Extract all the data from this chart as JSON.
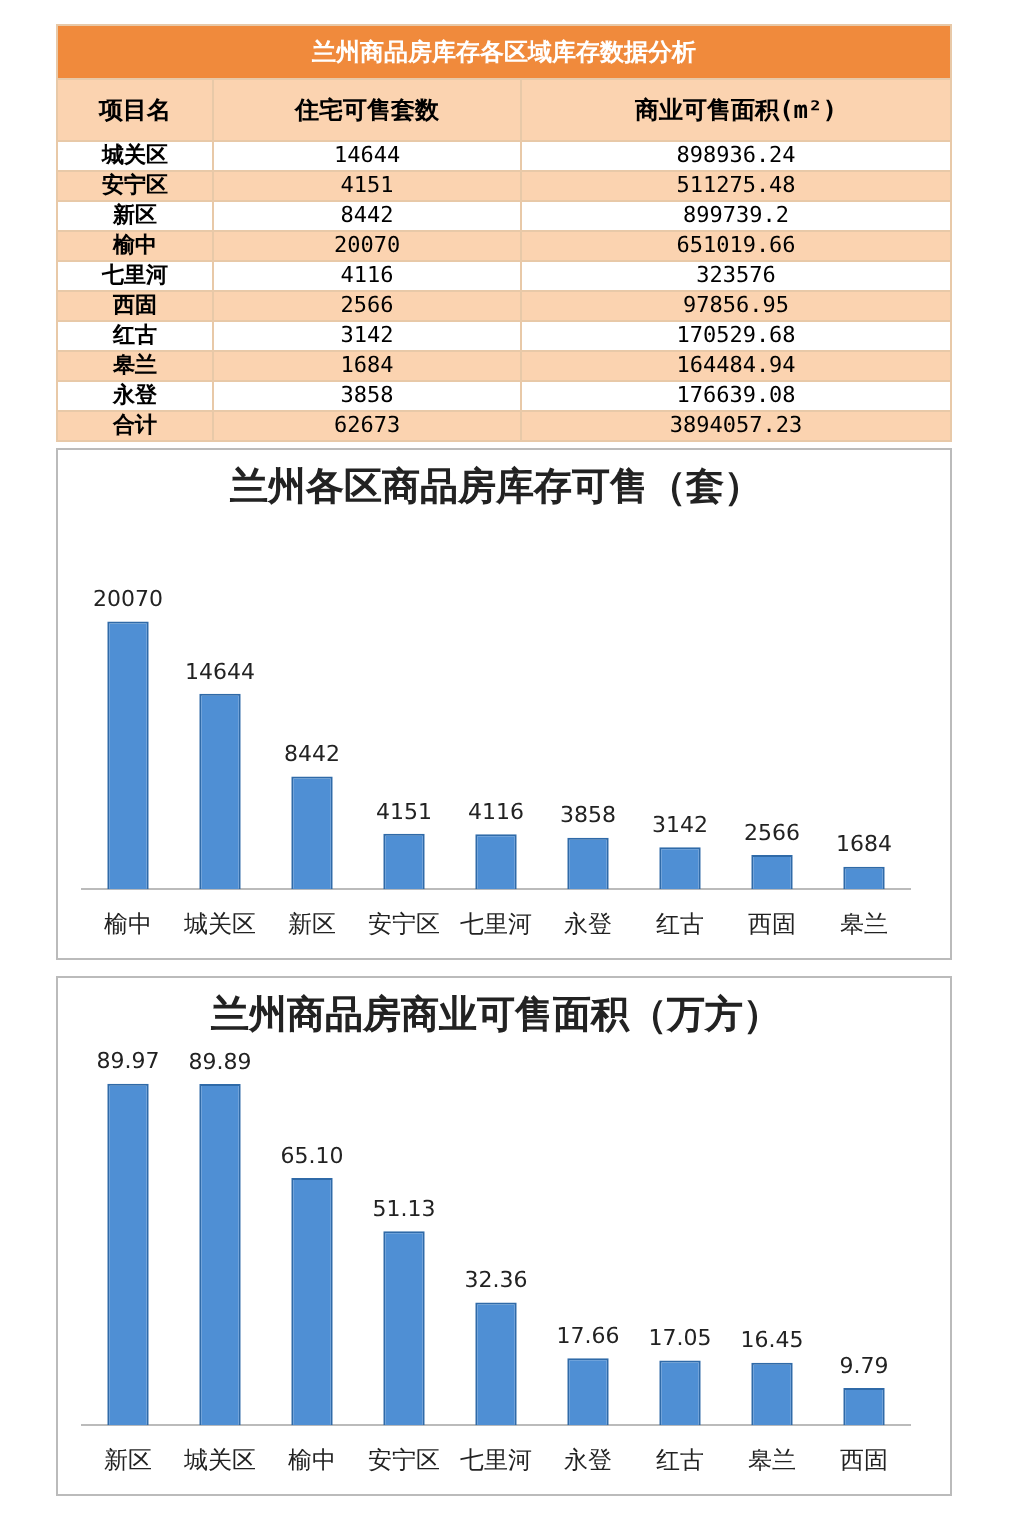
{
  "chart_data": [
    {
      "type": "heatmap",
      "title": "兰州商品房库存各区域库存数据分析",
      "ylabel": "项目名",
      "categories": [
        "住宅可售套数",
        "商业可售面积(m²)"
      ],
      "y_categories": [
        "城关区",
        "安宁区",
        "新区",
        "榆中",
        "七里河",
        "西固",
        "红古",
        "皋兰",
        "永登",
        "合计"
      ],
      "cells": [
        [
          14644,
          898936.24
        ],
        [
          4151,
          511275.48
        ],
        [
          8442,
          899739.2
        ],
        [
          20070,
          651019.66
        ],
        [
          4116,
          323576
        ],
        [
          2566,
          97856.95
        ],
        [
          3142,
          170529.68
        ],
        [
          1684,
          164484.94
        ],
        [
          3858,
          176639.08
        ],
        [
          62673,
          3894057.23
        ]
      ],
      "data_labels": true
    },
    {
      "type": "bar",
      "title": "兰州各区商品房库存可售（套）",
      "categories": [
        "榆中",
        "城关区",
        "新区",
        "安宁区",
        "七里河",
        "永登",
        "红古",
        "西固",
        "皋兰"
      ],
      "values": [
        20070,
        14644,
        8442,
        4151,
        4116,
        3858,
        3142,
        2566,
        1684
      ],
      "color": "#4f8fd4",
      "data_labels": true
    },
    {
      "type": "bar",
      "title": "兰州商品房商业可售面积（万方）",
      "categories": [
        "新区",
        "城关区",
        "榆中",
        "安宁区",
        "七里河",
        "永登",
        "红古",
        "皋兰",
        "西固"
      ],
      "values": [
        89.97,
        89.89,
        65.1,
        51.13,
        32.36,
        17.66,
        17.05,
        16.45,
        9.79
      ],
      "value_labels": [
        "89.97",
        "89.89",
        "65.10",
        "51.13",
        "32.36",
        "17.66",
        "17.05",
        "16.45",
        "9.79"
      ],
      "color": "#4f8fd4"
    }
  ]
}
